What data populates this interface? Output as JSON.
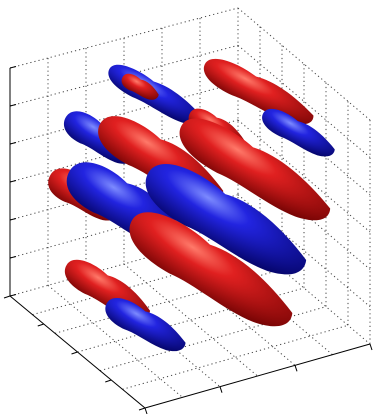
{
  "figure": {
    "kind": "3d-isosurface-plot",
    "colors": {
      "positive": "#d11a1a",
      "positive_highlight": "#ff6a5a",
      "positive_shadow": "#7a0505",
      "negative": "#1d1fd6",
      "negative_highlight": "#6d7cff",
      "negative_shadow": "#08087a",
      "axis": "#000000",
      "grid": "#444444",
      "background": "#ffffff"
    },
    "grid": true,
    "tick_labels_visible": false
  }
}
